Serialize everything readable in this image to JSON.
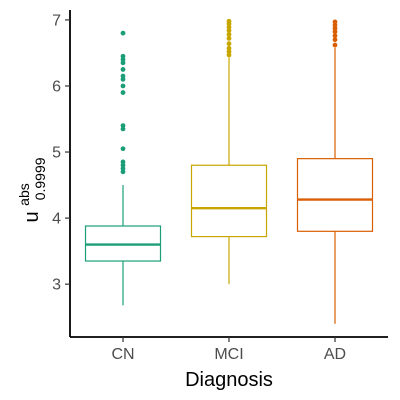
{
  "chart_data": {
    "type": "boxplot",
    "xlabel": "Diagnosis",
    "ylabel": {
      "base": "u",
      "superscript": "abs",
      "subscript": "0.9999"
    },
    "ylim": [
      2.2,
      7.15
    ],
    "yticks": [
      "3",
      "4",
      "5",
      "6",
      "7"
    ],
    "grid": false,
    "legend": "none",
    "categories": [
      "CN",
      "MCI",
      "AD"
    ],
    "series": [
      {
        "category": "CN",
        "color": "#1b9e77",
        "whisker_low": 2.68,
        "q1": 3.35,
        "median": 3.6,
        "q3": 3.88,
        "whisker_high": 4.5,
        "outliers": [
          4.7,
          4.75,
          4.8,
          4.85,
          5.05,
          5.35,
          5.4,
          5.9,
          6.0,
          6.1,
          6.15,
          6.25,
          6.35,
          6.4,
          6.45,
          6.8
        ]
      },
      {
        "category": "MCI",
        "color": "#c7a600",
        "whisker_low": 3.0,
        "q1": 3.72,
        "median": 4.15,
        "q3": 4.8,
        "whisker_high": 6.43,
        "outliers": [
          6.47,
          6.52,
          6.57,
          6.64,
          6.72,
          6.78,
          6.84,
          6.89,
          6.94,
          6.98
        ]
      },
      {
        "category": "AD",
        "color": "#d95f02",
        "whisker_low": 2.4,
        "q1": 3.8,
        "median": 4.28,
        "q3": 4.9,
        "whisker_high": 6.58,
        "outliers": [
          6.62,
          6.7,
          6.76,
          6.82,
          6.87,
          6.92,
          6.97
        ]
      }
    ]
  }
}
